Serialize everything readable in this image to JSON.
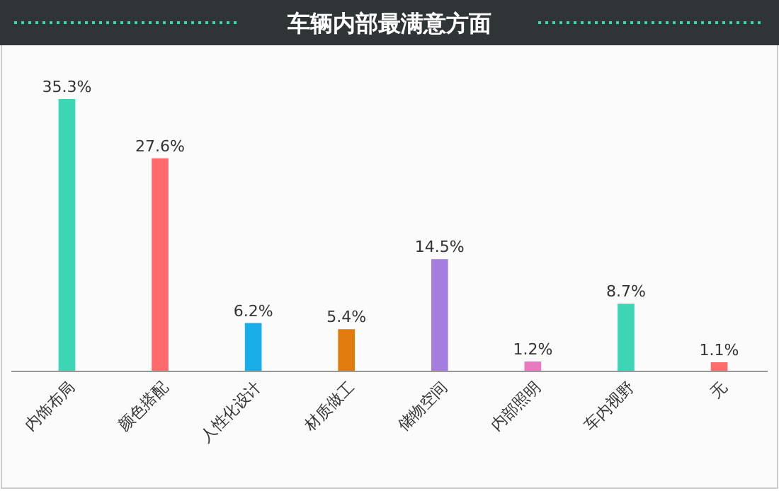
{
  "chart_data": {
    "type": "bar",
    "title": "车辆内部最满意方面",
    "categories": [
      "内饰布局",
      "颜色搭配",
      "人性化设计",
      "材质做工",
      "储物空间",
      "内部照明",
      "车内视野",
      "无"
    ],
    "values": [
      35.3,
      27.6,
      6.2,
      5.4,
      14.5,
      1.2,
      8.7,
      1.1
    ],
    "colors": [
      "#3dd6b5",
      "#ff6b6b",
      "#1aaee8",
      "#e07b0c",
      "#a57ce0",
      "#e87bc0",
      "#3dd6b5",
      "#ff6b6b"
    ],
    "value_labels": [
      "35.3%",
      "27.6%",
      "6.2%",
      "5.4%",
      "14.5%",
      "1.2%",
      "8.7%",
      "1.1%"
    ]
  }
}
